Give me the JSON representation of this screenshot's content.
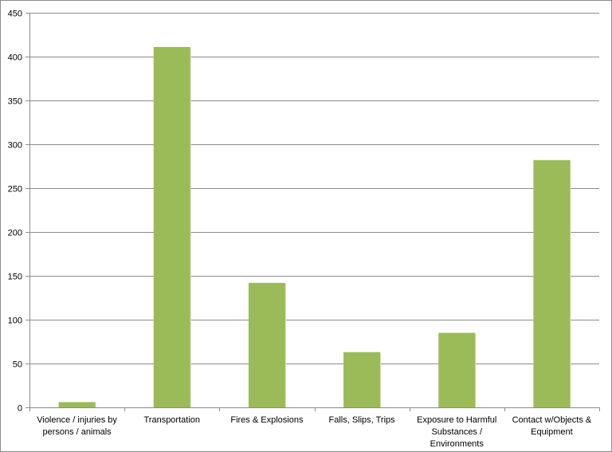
{
  "chart_data": {
    "type": "bar",
    "title": "",
    "xlabel": "",
    "ylabel": "",
    "ylim": [
      0,
      450
    ],
    "yticks": [
      "0",
      "50",
      "100",
      "150",
      "200",
      "250",
      "300",
      "350",
      "400",
      "450"
    ],
    "grid": true,
    "legend": "none",
    "bar_color": "#9bbb59",
    "categories": [
      [
        "Violence / injuries by",
        "persons / animals"
      ],
      [
        "Transportation"
      ],
      [
        "Fires & Explosions"
      ],
      [
        "Falls, Slips, Trips"
      ],
      [
        "Exposure to Harmful",
        "Substances /",
        "Environments"
      ],
      [
        "Contact w/Objects &",
        "Equipment"
      ]
    ],
    "values": [
      6,
      411,
      142,
      63,
      85,
      282
    ]
  }
}
